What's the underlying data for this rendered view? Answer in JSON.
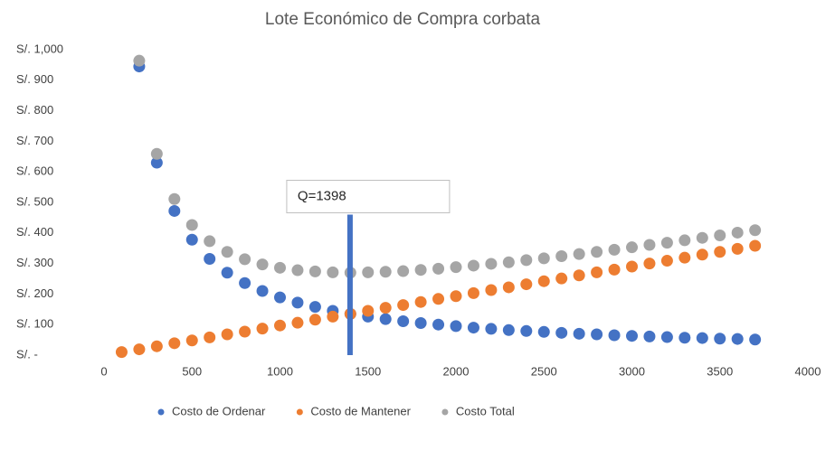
{
  "chart_data": {
    "type": "scatter",
    "title": "Lote Económico de Compra corbata",
    "xlim": [
      0,
      4000
    ],
    "xticks": [
      0,
      500,
      1000,
      1500,
      2000,
      2500,
      3000,
      3500,
      4000
    ],
    "ylim": [
      0,
      1000
    ],
    "yticks": [
      {
        "value": 0,
        "label": "S/. -"
      },
      {
        "value": 100,
        "label": "S/. 100"
      },
      {
        "value": 200,
        "label": "S/. 200"
      },
      {
        "value": 300,
        "label": "S/. 300"
      },
      {
        "value": 400,
        "label": "S/. 400"
      },
      {
        "value": 500,
        "label": "S/. 500"
      },
      {
        "value": 600,
        "label": "S/. 600"
      },
      {
        "value": 700,
        "label": "S/. 700"
      },
      {
        "value": 800,
        "label": "S/. 800"
      },
      {
        "value": 900,
        "label": "S/. 900"
      },
      {
        "value": 1000,
        "label": "S/. 1,000"
      }
    ],
    "grid": false,
    "legend": "bottom",
    "annotation": {
      "text": "Q=1398",
      "x": 1398,
      "y_top": 460,
      "color": "#4472c4"
    },
    "series": [
      {
        "name": "Costo de Ordenar",
        "color": "#4472c4",
        "x": [
          200,
          300,
          400,
          500,
          600,
          700,
          800,
          900,
          1000,
          1100,
          1200,
          1300,
          1400,
          1500,
          1600,
          1700,
          1800,
          1900,
          2000,
          2100,
          2200,
          2300,
          2400,
          2500,
          2600,
          2700,
          2800,
          2900,
          3000,
          3100,
          3200,
          3300,
          3400,
          3500,
          3600,
          3700
        ],
        "values": [
          945,
          630,
          472,
          378,
          315,
          270,
          236,
          210,
          189,
          172,
          158,
          145,
          135,
          126,
          118,
          111,
          105,
          100,
          95,
          90,
          86,
          82,
          79,
          76,
          73,
          70,
          68,
          65,
          63,
          61,
          59,
          57,
          56,
          54,
          53,
          51
        ]
      },
      {
        "name": "Costo de Mantener",
        "color": "#ed7d31",
        "x": [
          100,
          200,
          300,
          400,
          500,
          600,
          700,
          800,
          900,
          1000,
          1100,
          1200,
          1300,
          1400,
          1500,
          1600,
          1700,
          1800,
          1900,
          2000,
          2100,
          2200,
          2300,
          2400,
          2500,
          2600,
          2700,
          2800,
          2900,
          3000,
          3100,
          3200,
          3300,
          3400,
          3500,
          3600,
          3700
        ],
        "values": [
          10,
          19,
          29,
          39,
          48,
          58,
          68,
          77,
          87,
          97,
          106,
          116,
          126,
          135,
          145,
          155,
          164,
          174,
          184,
          193,
          203,
          213,
          222,
          232,
          242,
          251,
          261,
          271,
          280,
          290,
          300,
          309,
          319,
          329,
          338,
          348,
          358
        ]
      },
      {
        "name": "Costo Total",
        "color": "#a5a5a5",
        "x": [
          200,
          300,
          400,
          500,
          600,
          700,
          800,
          900,
          1000,
          1100,
          1200,
          1300,
          1400,
          1500,
          1600,
          1700,
          1800,
          1900,
          2000,
          2100,
          2200,
          2300,
          2400,
          2500,
          2600,
          2700,
          2800,
          2900,
          3000,
          3100,
          3200,
          3300,
          3400,
          3500,
          3600,
          3700
        ],
        "values": [
          964,
          659,
          511,
          426,
          373,
          338,
          314,
          297,
          286,
          278,
          274,
          271,
          270,
          271,
          273,
          275,
          279,
          283,
          288,
          293,
          299,
          304,
          311,
          317,
          324,
          331,
          338,
          345,
          353,
          361,
          368,
          376,
          384,
          392,
          401,
          409
        ]
      }
    ]
  }
}
